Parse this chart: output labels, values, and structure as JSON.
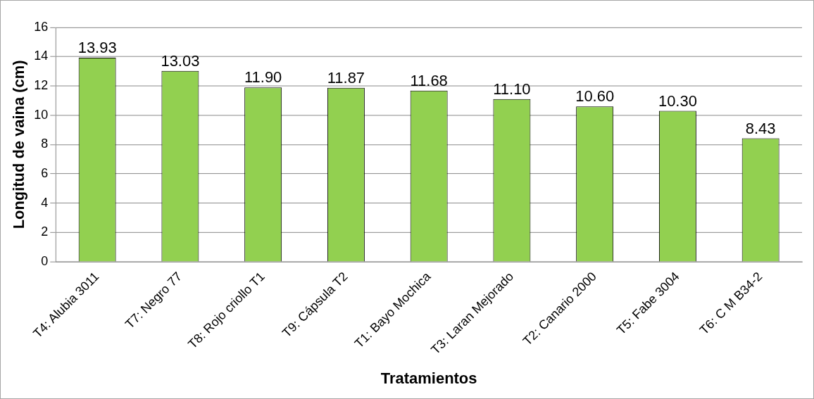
{
  "chart_data": {
    "type": "bar",
    "xlabel": "Tratamientos",
    "ylabel": "Longitud de vaina (cm)",
    "categories": [
      "T4: Alubia 3011",
      "T7: Negro 77",
      "T8: Rojo criollo T1",
      "T9: Cápsula T2",
      "T1: Bayo Mochica",
      "T3: Laran Mejorado",
      "T2: Canario 2000",
      "T5: Fabe 3004",
      "T6: C M B34-2"
    ],
    "values": [
      13.93,
      13.03,
      11.9,
      11.87,
      11.68,
      11.1,
      10.6,
      10.3,
      8.43
    ],
    "value_labels": [
      "13.93",
      "13.03",
      "11.90",
      "11.87",
      "11.68",
      "11.10",
      "10.60",
      "10.30",
      "8.43"
    ],
    "color": "#92d050",
    "ylim": [
      0,
      16
    ],
    "yticks": [
      0,
      2,
      4,
      6,
      8,
      10,
      12,
      14,
      16
    ],
    "grid": "y"
  }
}
